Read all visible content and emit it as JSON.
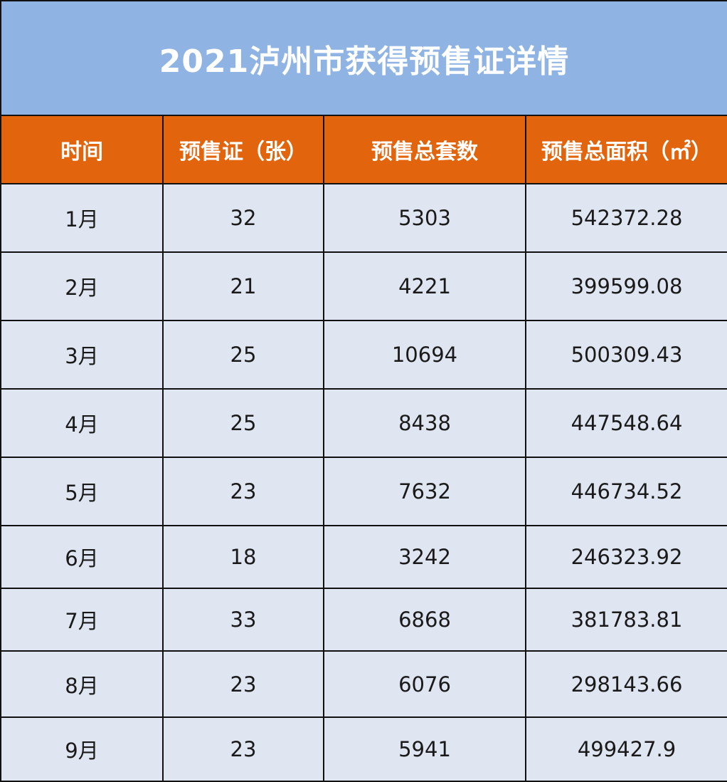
{
  "title": "2021泸州市获得预售证详情",
  "headers": [
    "时间",
    "预售证（张）",
    "预售总套数",
    "预售总面积（㎡）"
  ],
  "rows": [
    [
      "1月",
      "32",
      "5303",
      "542372.28"
    ],
    [
      "2月",
      "21",
      "4221",
      "399599.08"
    ],
    [
      "3月",
      "25",
      "10694",
      "500309.43"
    ],
    [
      "4月",
      "25",
      "8438",
      "447548.64"
    ],
    [
      "5月",
      "23",
      "7632",
      "446734.52"
    ],
    [
      "6月",
      "18",
      "3242",
      "246323.92"
    ],
    [
      "7月",
      "33",
      "6868",
      "381783.81"
    ],
    [
      "8月",
      "23",
      "6076",
      "298143.66"
    ],
    [
      "9月",
      "23",
      "5941",
      "499427.9"
    ]
  ],
  "colors": {
    "title_bg": "#8fb4e3",
    "header_bg": "#e2650d",
    "body_bg": "#dfe6f1",
    "title_text": "#ffffff",
    "header_text": "#ffffff"
  }
}
